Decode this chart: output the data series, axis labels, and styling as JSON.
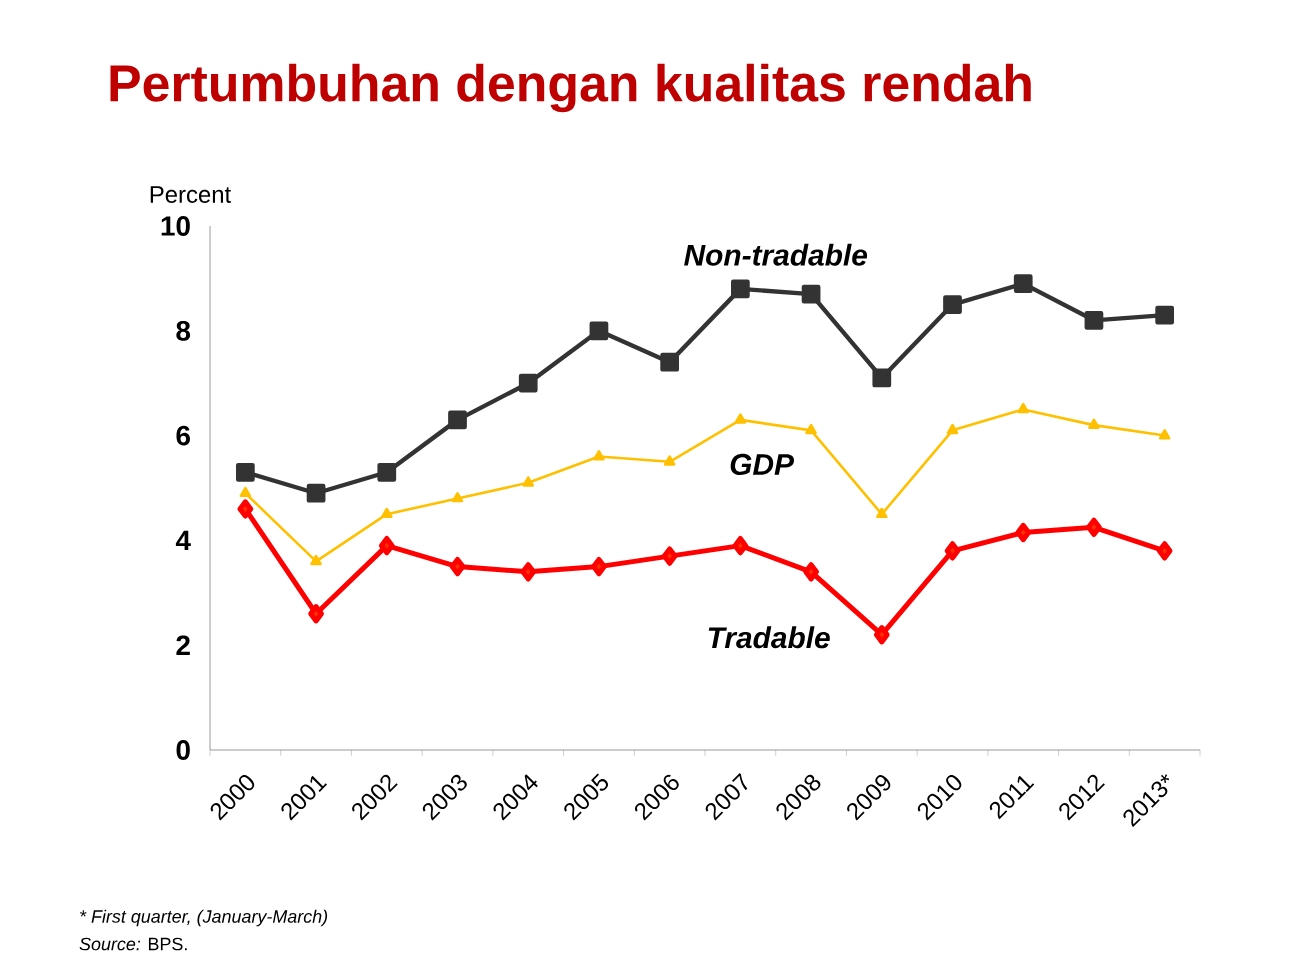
{
  "chart_data": {
    "type": "line",
    "title": "Pertumbuhan dengan kualitas rendah",
    "ylabel": "Percent",
    "categories": [
      "2000",
      "2001",
      "2002",
      "2003",
      "2004",
      "2005",
      "2006",
      "2007",
      "2008",
      "2009",
      "2010",
      "2011",
      "2012",
      "2013*"
    ],
    "series": [
      {
        "name": "Non-tradable",
        "color": "#333333",
        "marker": "square",
        "values": [
          5.3,
          4.9,
          5.3,
          6.3,
          7.0,
          8.0,
          7.4,
          8.8,
          8.7,
          7.1,
          8.5,
          8.9,
          8.2,
          8.3
        ]
      },
      {
        "name": "GDP",
        "color": "#ffc000",
        "marker": "triangle",
        "values": [
          4.9,
          3.6,
          4.5,
          4.8,
          5.1,
          5.6,
          5.5,
          6.3,
          6.1,
          4.5,
          6.1,
          6.5,
          6.2,
          6.0
        ]
      },
      {
        "name": "Tradable",
        "color": "#ff0000",
        "marker": "diamond",
        "values": [
          4.6,
          2.6,
          3.9,
          3.5,
          3.4,
          3.5,
          3.7,
          3.9,
          3.4,
          2.2,
          3.8,
          4.15,
          4.25,
          3.8
        ]
      }
    ],
    "ylim": [
      0,
      10
    ],
    "yticks": [
      0,
      2,
      4,
      6,
      8,
      10
    ],
    "grid": false,
    "legend": false,
    "line_style": "solid",
    "annotations": [
      "* First quarter, (January-March)",
      "*Source:* BPS."
    ]
  }
}
